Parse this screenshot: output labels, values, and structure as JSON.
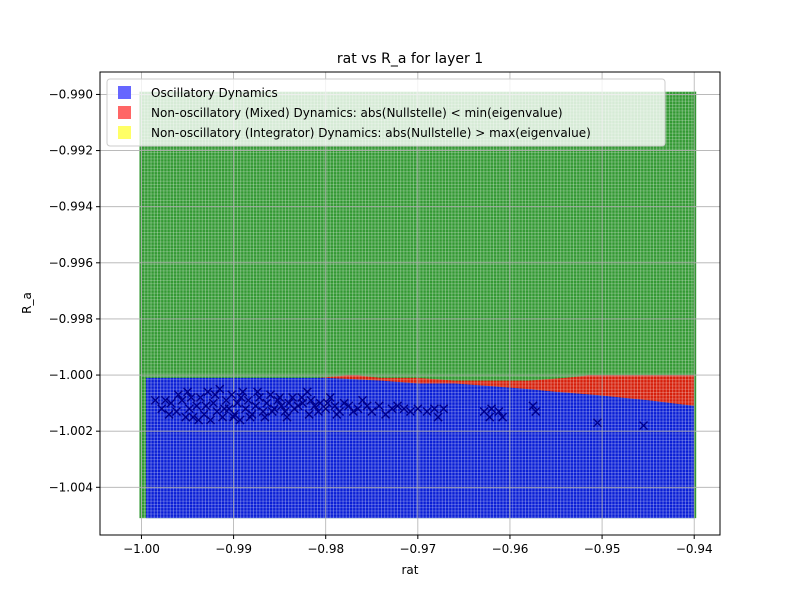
{
  "chart_data": {
    "type": "scatter",
    "title": "rat vs R_a for layer 1",
    "xlabel": "rat",
    "ylabel": "R_a",
    "xlim": [
      -1.0045,
      -0.9372
    ],
    "ylim": [
      -1.0057,
      -0.9892
    ],
    "xticks": [
      -1.0,
      -0.99,
      -0.98,
      -0.97,
      -0.96,
      -0.95,
      -0.94
    ],
    "xtick_labels": [
      "−1.00",
      "−0.99",
      "−0.98",
      "−0.97",
      "−0.96",
      "−0.95",
      "−0.94"
    ],
    "yticks": [
      -0.99,
      -0.992,
      -0.994,
      -0.996,
      -0.998,
      -1.0,
      -1.002,
      -1.004
    ],
    "ytick_labels": [
      "−0.990",
      "−0.992",
      "−0.994",
      "−0.996",
      "−0.998",
      "−1.000",
      "−1.002",
      "−1.004"
    ],
    "grid": true,
    "legend_position": "top-left",
    "legend": [
      {
        "label": "Oscillatory Dynamics",
        "color": "#6666ff"
      },
      {
        "label": "Non-oscillatory (Mixed) Dynamics: abs(Nullstelle) < min(eigenvalue)",
        "color": "#ff6666"
      },
      {
        "label": "Non-oscillatory (Integrator) Dynamics: abs(Nullstelle) > max(eigenvalue)",
        "color": "#ffff66"
      }
    ],
    "regions": {
      "x_range": [
        -1.0,
        -0.94
      ],
      "y_range": [
        -1.0051,
        -0.9899
      ],
      "green_color": "#008000",
      "blue_color": "#0000ff",
      "red_color": "#ff0000",
      "blue_top_boundary": [
        [
          -0.9995,
          -1.0001
        ],
        [
          -0.98,
          -1.0001
        ],
        [
          -0.974,
          -1.0002
        ],
        [
          -0.97,
          -1.0003
        ],
        [
          -0.966,
          -1.0003
        ],
        [
          -0.962,
          -1.0004
        ],
        [
          -0.958,
          -1.0005
        ],
        [
          -0.955,
          -1.0006
        ],
        [
          -0.951,
          -1.0007
        ],
        [
          -0.948,
          -1.0008
        ],
        [
          -0.945,
          -1.0009
        ],
        [
          -0.9425,
          -1.001
        ],
        [
          -0.94,
          -1.0011
        ]
      ],
      "red_top_boundary": [
        [
          -0.981,
          -1.0001
        ],
        [
          -0.977,
          -1.0
        ],
        [
          -0.974,
          -1.0001
        ],
        [
          -0.97,
          -1.0001
        ],
        [
          -0.966,
          -1.0002
        ],
        [
          -0.962,
          -1.0002
        ],
        [
          -0.958,
          -1.0002
        ],
        [
          -0.954,
          -1.0001
        ],
        [
          -0.951,
          -1.0
        ],
        [
          -0.947,
          -1.0
        ],
        [
          -0.944,
          -1.0
        ],
        [
          -0.94,
          -1.0
        ]
      ]
    },
    "marker": "x",
    "marker_color": "#00008b",
    "points": [
      [
        -0.9985,
        -1.0009
      ],
      [
        -0.9968,
        -1.001
      ],
      [
        -0.9962,
        -1.0013
      ],
      [
        -0.9956,
        -1.0009
      ],
      [
        -0.995,
        -1.0006
      ],
      [
        -0.9948,
        -1.0012
      ],
      [
        -0.9944,
        -1.0015
      ],
      [
        -0.994,
        -1.0011
      ],
      [
        -0.9936,
        -1.0008
      ],
      [
        -0.9932,
        -1.0014
      ],
      [
        -0.9928,
        -1.0006
      ],
      [
        -0.9925,
        -1.0016
      ],
      [
        -0.9922,
        -1.001
      ],
      [
        -0.9918,
        -1.0013
      ],
      [
        -0.9915,
        -1.0005
      ],
      [
        -0.9912,
        -1.0015
      ],
      [
        -0.9908,
        -1.0009
      ],
      [
        -0.9905,
        -1.0012
      ],
      [
        -0.9902,
        -1.0007
      ],
      [
        -0.9899,
        -1.0014
      ],
      [
        -0.9896,
        -1.001
      ],
      [
        -0.9893,
        -1.0016
      ],
      [
        -0.989,
        -1.0006
      ],
      [
        -0.9887,
        -1.0012
      ],
      [
        -0.9884,
        -1.0009
      ],
      [
        -0.988,
        -1.0014
      ],
      [
        -0.9876,
        -1.0011
      ],
      [
        -0.9872,
        -1.0008
      ],
      [
        -0.9868,
        -1.0013
      ],
      [
        -0.9864,
        -1.001
      ],
      [
        -0.986,
        -1.0007
      ],
      [
        -0.9856,
        -1.0012
      ],
      [
        -0.9852,
        -1.0009
      ],
      [
        -0.9848,
        -1.0011
      ],
      [
        -0.9844,
        -1.0013
      ],
      [
        -0.984,
        -1.001
      ],
      [
        -0.9836,
        -1.0008
      ],
      [
        -0.983,
        -1.0011
      ],
      [
        -0.9825,
        -1.001
      ],
      [
        -0.982,
        -1.0006
      ],
      [
        -0.9818,
        -1.0014
      ],
      [
        -0.9812,
        -1.0011
      ],
      [
        -0.9806,
        -1.001
      ],
      [
        -0.98,
        -1.0012
      ],
      [
        -0.9795,
        -1.0008
      ],
      [
        -0.979,
        -1.0011
      ],
      [
        -0.9785,
        -1.0013
      ],
      [
        -0.978,
        -1.001
      ],
      [
        -0.9775,
        -1.0011
      ],
      [
        -0.977,
        -1.0013
      ],
      [
        -0.9765,
        -1.0012
      ],
      [
        -0.976,
        -1.0009
      ],
      [
        -0.9755,
        -1.0011
      ],
      [
        -0.975,
        -1.0013
      ],
      [
        -0.9742,
        -1.0011
      ],
      [
        -0.9735,
        -1.0014
      ],
      [
        -0.9728,
        -1.0012
      ],
      [
        -0.9722,
        -1.0011
      ],
      [
        -0.9715,
        -1.0012
      ],
      [
        -0.9708,
        -1.0013
      ],
      [
        -0.97,
        -1.0012
      ],
      [
        -0.969,
        -1.0013
      ],
      [
        -0.9682,
        -1.0012
      ],
      [
        -0.9678,
        -1.0015
      ],
      [
        -0.9672,
        -1.0012
      ],
      [
        -0.9628,
        -1.0013
      ],
      [
        -0.9622,
        -1.0015
      ],
      [
        -0.962,
        -1.0012
      ],
      [
        -0.9612,
        -1.0013
      ],
      [
        -0.9608,
        -1.0015
      ],
      [
        -0.9575,
        -1.0011
      ],
      [
        -0.9572,
        -1.0013
      ],
      [
        -0.9505,
        -1.0017
      ],
      [
        -0.9455,
        -1.0018
      ],
      [
        -0.9978,
        -1.0012
      ],
      [
        -0.9974,
        -1.0009
      ],
      [
        -0.997,
        -1.0014
      ],
      [
        -0.996,
        -1.0007
      ],
      [
        -0.9952,
        -1.0015
      ],
      [
        -0.9946,
        -1.0008
      ],
      [
        -0.9938,
        -1.0016
      ],
      [
        -0.993,
        -1.0011
      ],
      [
        -0.992,
        -1.0007
      ],
      [
        -0.991,
        -1.0012
      ],
      [
        -0.99,
        -1.0015
      ],
      [
        -0.9892,
        -1.0008
      ],
      [
        -0.9882,
        -1.0015
      ],
      [
        -0.9874,
        -1.0006
      ],
      [
        -0.9866,
        -1.0015
      ],
      [
        -0.9858,
        -1.0013
      ],
      [
        -0.985,
        -1.0008
      ],
      [
        -0.9842,
        -1.0015
      ],
      [
        -0.9834,
        -1.0012
      ],
      [
        -0.9826,
        -1.0008
      ],
      [
        -0.9816,
        -1.0009
      ],
      [
        -0.9808,
        -1.0013
      ],
      [
        -0.9798,
        -1.001
      ],
      [
        -0.9788,
        -1.0014
      ]
    ]
  }
}
